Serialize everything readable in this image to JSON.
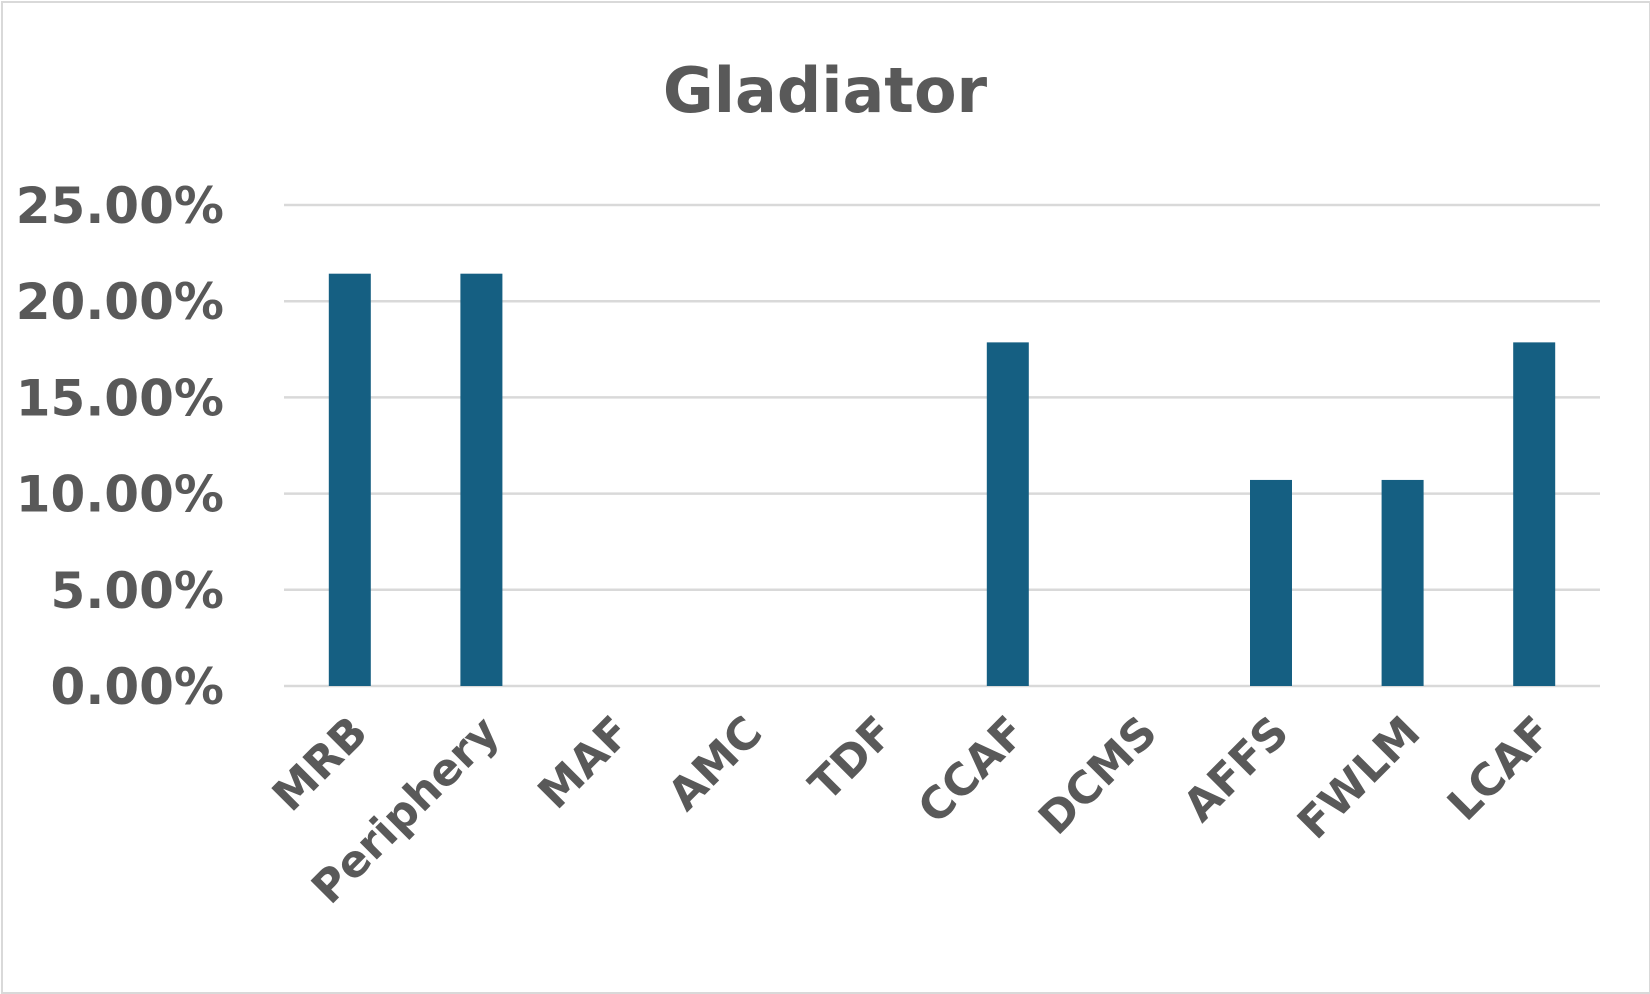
{
  "chart_data": {
    "type": "bar",
    "title": "Gladiator",
    "categories": [
      "MRB",
      "Periphery",
      "MAF",
      "AMC",
      "TDF",
      "CCAF",
      "DCMS",
      "AFFS",
      "FWLM",
      "LCAF"
    ],
    "values": [
      21.43,
      21.43,
      0,
      0,
      0,
      17.86,
      0,
      10.71,
      10.71,
      17.86
    ],
    "value_unit": "%",
    "ylim": [
      0,
      25
    ],
    "yticks": [
      "0.00%",
      "5.00%",
      "10.00%",
      "15.00%",
      "20.00%",
      "25.00%"
    ],
    "xlabel": "",
    "ylabel": "",
    "grid": true,
    "legend": "none",
    "bar_color": "#155F82"
  }
}
